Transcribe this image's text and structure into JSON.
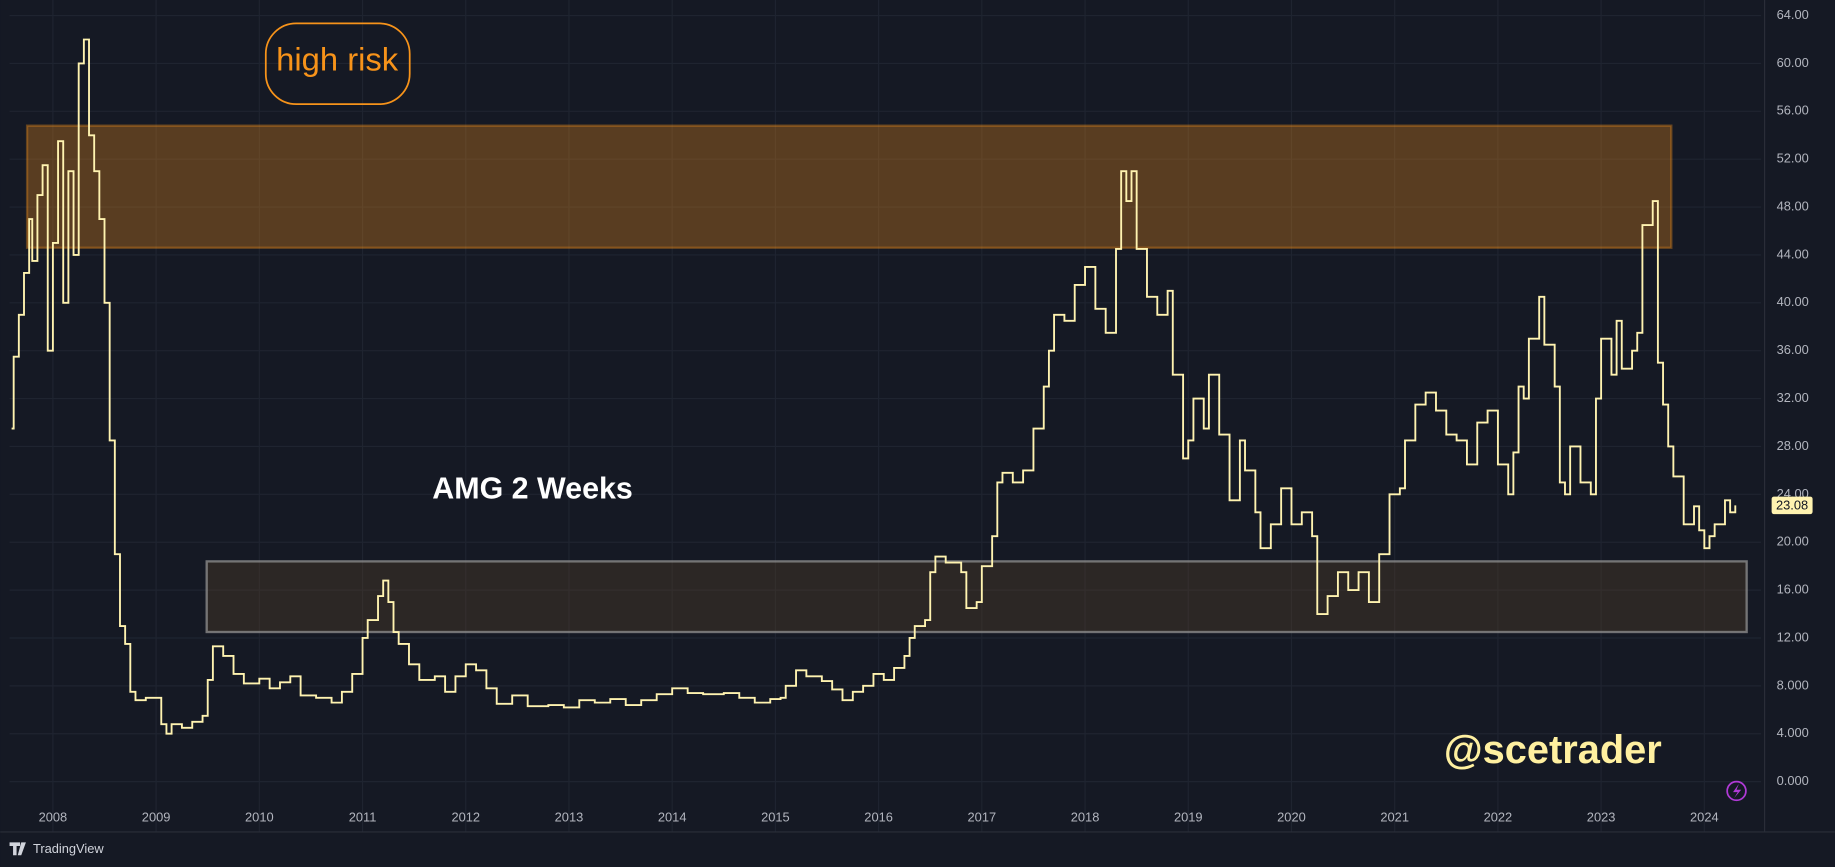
{
  "chart_data": {
    "type": "line",
    "step": true,
    "title": "AMG 2 Weeks",
    "annotation": "high risk",
    "watermark": "@scetrader",
    "branding": "TradingView",
    "color": "#fff3b0",
    "grid": true,
    "xlim": [
      2007.58,
      2024.55
    ],
    "ylim": [
      -4.2,
      65.3
    ],
    "xticks": [
      2008,
      2009,
      2010,
      2011,
      2012,
      2013,
      2014,
      2015,
      2016,
      2017,
      2018,
      2019,
      2020,
      2021,
      2022,
      2023,
      2024
    ],
    "yticks": [
      {
        "value": 0,
        "label": "0.000"
      },
      {
        "value": 4,
        "label": "4.000"
      },
      {
        "value": 8,
        "label": "8.000"
      },
      {
        "value": 12,
        "label": "12.00"
      },
      {
        "value": 16,
        "label": "16.00"
      },
      {
        "value": 20,
        "label": "20.00"
      },
      {
        "value": 24,
        "label": "24.00"
      },
      {
        "value": 28,
        "label": "28.00"
      },
      {
        "value": 32,
        "label": "32.00"
      },
      {
        "value": 36,
        "label": "36.00"
      },
      {
        "value": 40,
        "label": "40.00"
      },
      {
        "value": 44,
        "label": "44.00"
      },
      {
        "value": 48,
        "label": "48.00"
      },
      {
        "value": 52,
        "label": "52.00"
      },
      {
        "value": 56,
        "label": "56.00"
      },
      {
        "value": 60,
        "label": "60.00"
      },
      {
        "value": 64,
        "label": "64.00"
      }
    ],
    "zones": [
      {
        "x": [
          2007.75,
          2023.68
        ],
        "y": [
          44.6,
          54.8
        ],
        "color": "#f7931a"
      },
      {
        "x": [
          2009.49,
          2024.41
        ],
        "y": [
          12.5,
          18.4
        ],
        "color": "#5a4127"
      }
    ],
    "last_value": 23.08,
    "x": [
      2007.6,
      2007.62,
      2007.67,
      2007.72,
      2007.77,
      2007.8,
      2007.85,
      2007.9,
      2007.95,
      2008.0,
      2008.05,
      2008.1,
      2008.15,
      2008.2,
      2008.25,
      2008.3,
      2008.35,
      2008.4,
      2008.45,
      2008.5,
      2008.55,
      2008.6,
      2008.65,
      2008.7,
      2008.75,
      2008.8,
      2008.9,
      2009.05,
      2009.1,
      2009.15,
      2009.25,
      2009.35,
      2009.45,
      2009.5,
      2009.55,
      2009.65,
      2009.75,
      2009.85,
      2010.0,
      2010.1,
      2010.2,
      2010.3,
      2010.4,
      2010.55,
      2010.7,
      2010.8,
      2010.9,
      2011.0,
      2011.05,
      2011.15,
      2011.2,
      2011.25,
      2011.3,
      2011.35,
      2011.45,
      2011.55,
      2011.7,
      2011.8,
      2011.9,
      2012.0,
      2012.1,
      2012.2,
      2012.3,
      2012.45,
      2012.6,
      2012.8,
      2012.95,
      2013.1,
      2013.25,
      2013.4,
      2013.55,
      2013.7,
      2013.85,
      2014.0,
      2014.15,
      2014.3,
      2014.5,
      2014.65,
      2014.8,
      2014.95,
      2015.05,
      2015.1,
      2015.2,
      2015.3,
      2015.45,
      2015.55,
      2015.65,
      2015.75,
      2015.85,
      2015.95,
      2016.05,
      2016.15,
      2016.25,
      2016.3,
      2016.35,
      2016.45,
      2016.5,
      2016.55,
      2016.65,
      2016.8,
      2016.85,
      2016.95,
      2017.0,
      2017.1,
      2017.15,
      2017.2,
      2017.3,
      2017.4,
      2017.5,
      2017.6,
      2017.65,
      2017.7,
      2017.8,
      2017.9,
      2018.0,
      2018.1,
      2018.2,
      2018.3,
      2018.35,
      2018.4,
      2018.45,
      2018.5,
      2018.6,
      2018.7,
      2018.8,
      2018.85,
      2018.95,
      2019.0,
      2019.05,
      2019.15,
      2019.2,
      2019.3,
      2019.4,
      2019.5,
      2019.55,
      2019.65,
      2019.7,
      2019.8,
      2019.9,
      2020.0,
      2020.1,
      2020.2,
      2020.25,
      2020.35,
      2020.45,
      2020.55,
      2020.65,
      2020.75,
      2020.85,
      2020.95,
      2021.05,
      2021.1,
      2021.2,
      2021.3,
      2021.4,
      2021.5,
      2021.6,
      2021.7,
      2021.8,
      2021.9,
      2022.0,
      2022.1,
      2022.15,
      2022.2,
      2022.25,
      2022.3,
      2022.4,
      2022.45,
      2022.55,
      2022.6,
      2022.65,
      2022.7,
      2022.8,
      2022.9,
      2022.95,
      2023.0,
      2023.1,
      2023.15,
      2023.2,
      2023.3,
      2023.35,
      2023.4,
      2023.5,
      2023.55,
      2023.6,
      2023.65,
      2023.7,
      2023.8,
      2023.9,
      2023.95,
      2024.0,
      2024.05,
      2024.1,
      2024.2,
      2024.25,
      2024.3
    ],
    "values": [
      29.5,
      35.5,
      39,
      42.5,
      47,
      43.5,
      49,
      51.5,
      36,
      45,
      53.5,
      40,
      51,
      44,
      60,
      62,
      54,
      51,
      47,
      40,
      28.5,
      19,
      13,
      11.5,
      7.5,
      6.8,
      7.0,
      4.8,
      4.0,
      4.8,
      4.5,
      5,
      5.5,
      8.5,
      11.3,
      10.5,
      9,
      8.2,
      8.6,
      7.8,
      8.3,
      8.8,
      7.2,
      7.0,
      6.6,
      7.5,
      9.0,
      12.0,
      13.5,
      15.5,
      16.8,
      15.0,
      12.5,
      11.5,
      9.8,
      8.5,
      8.8,
      7.5,
      8.8,
      9.8,
      9.3,
      7.8,
      6.5,
      7.2,
      6.3,
      6.4,
      6.2,
      6.8,
      6.6,
      6.9,
      6.4,
      6.8,
      7.3,
      7.8,
      7.4,
      7.3,
      7.4,
      7.0,
      6.6,
      6.9,
      7.0,
      8.0,
      9.3,
      8.8,
      8.4,
      7.7,
      6.8,
      7.5,
      8.0,
      9.0,
      8.5,
      9.5,
      10.5,
      12.0,
      13.0,
      13.5,
      17.5,
      18.8,
      18.3,
      17.5,
      14.5,
      15.0,
      18.0,
      20.5,
      25,
      25.8,
      25,
      26,
      29.5,
      33,
      36,
      39,
      38.5,
      41.5,
      43,
      39.5,
      37.5,
      44.5,
      51,
      48.5,
      51,
      44.5,
      40.5,
      39,
      41,
      34,
      27,
      28.5,
      32,
      29.5,
      34,
      29,
      23.5,
      28.5,
      26,
      22.5,
      19.5,
      21.5,
      24.5,
      21.5,
      22.5,
      20.5,
      14,
      15.5,
      17.5,
      16,
      17.5,
      15,
      19,
      24,
      24.5,
      28.5,
      31.5,
      32.5,
      31,
      29,
      28.5,
      26.5,
      30,
      31,
      26.5,
      24,
      27.5,
      33,
      32,
      37,
      40.5,
      36.5,
      33,
      25,
      24,
      28,
      25,
      24,
      32,
      37,
      34,
      38.5,
      34.5,
      36,
      37.5,
      46.5,
      48.5,
      35,
      31.5,
      28,
      25.5,
      21.5,
      23,
      21,
      19.5,
      20.5,
      21.5,
      23.5,
      22.5,
      23.08
    ]
  }
}
